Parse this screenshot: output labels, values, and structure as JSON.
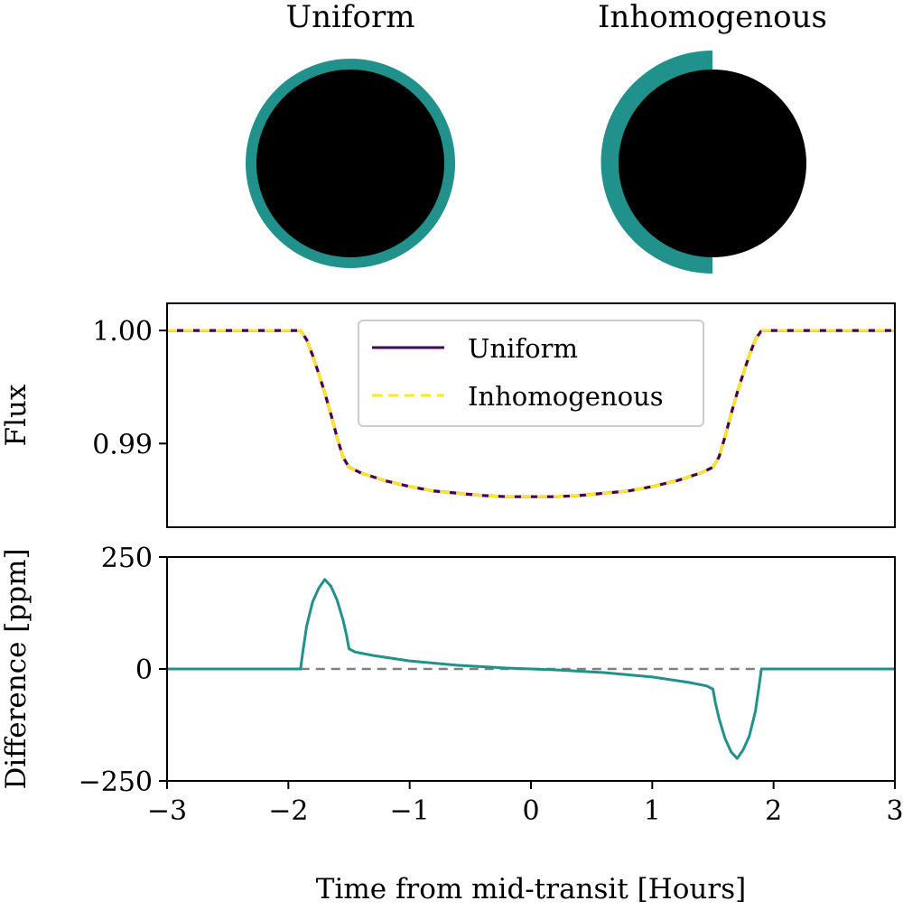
{
  "diagram": {
    "uniform": {
      "title": "Uniform"
    },
    "inhomogenous": {
      "title": "Inhomogenous"
    },
    "atmosphere_color": "#21918c",
    "planet_color": "#000000"
  },
  "chart_data": [
    {
      "type": "line",
      "panel": "flux",
      "ylabel": "Flux",
      "xlim": [
        -3,
        3
      ],
      "ylim": [
        0.9826,
        1.0024
      ],
      "yticks": [
        0.99,
        1.0
      ],
      "ytick_labels": [
        "0.99",
        "1.00"
      ],
      "legend_loc": "upper center",
      "series": [
        {
          "name": "Uniform",
          "style": "solid",
          "color": "#440154",
          "x": [
            -3.0,
            -1.9,
            -1.85,
            -1.8,
            -1.75,
            -1.7,
            -1.65,
            -1.6,
            -1.55,
            -1.5,
            -1.4,
            -1.2,
            -1.0,
            -0.8,
            -0.6,
            -0.4,
            -0.2,
            0.0,
            0.2,
            0.4,
            0.6,
            0.8,
            1.0,
            1.2,
            1.4,
            1.5,
            1.55,
            1.6,
            1.65,
            1.7,
            1.75,
            1.8,
            1.85,
            1.9,
            3.0
          ],
          "y": [
            1.0,
            1.0,
            0.9992,
            0.9978,
            0.9962,
            0.9945,
            0.9926,
            0.9906,
            0.9888,
            0.9879,
            0.9874,
            0.9867,
            0.9862,
            0.9858,
            0.9856,
            0.9854,
            0.9853,
            0.9853,
            0.9853,
            0.9854,
            0.9856,
            0.9858,
            0.9862,
            0.9867,
            0.9874,
            0.9879,
            0.9888,
            0.9906,
            0.9926,
            0.9945,
            0.9962,
            0.9978,
            0.9992,
            1.0,
            1.0
          ]
        },
        {
          "name": "Inhomogenous",
          "style": "dashed",
          "color": "#fde725",
          "x": [
            -3.0,
            -1.9,
            -1.85,
            -1.8,
            -1.75,
            -1.7,
            -1.65,
            -1.6,
            -1.55,
            -1.5,
            -1.4,
            -1.2,
            -1.0,
            -0.8,
            -0.6,
            -0.4,
            -0.2,
            0.0,
            0.2,
            0.4,
            0.6,
            0.8,
            1.0,
            1.2,
            1.4,
            1.5,
            1.55,
            1.6,
            1.65,
            1.7,
            1.75,
            1.8,
            1.85,
            1.9,
            3.0
          ],
          "y": [
            1.0,
            1.0,
            0.9992,
            0.9978,
            0.9962,
            0.9945,
            0.9926,
            0.9906,
            0.9888,
            0.9879,
            0.9874,
            0.9867,
            0.9862,
            0.9858,
            0.9856,
            0.9854,
            0.9853,
            0.9853,
            0.9853,
            0.9854,
            0.9856,
            0.9858,
            0.9862,
            0.9867,
            0.9874,
            0.9879,
            0.9888,
            0.9906,
            0.9926,
            0.9945,
            0.9962,
            0.9978,
            0.9992,
            1.0,
            1.0
          ]
        }
      ]
    },
    {
      "type": "line",
      "panel": "difference",
      "xlabel": "Time from mid-transit [Hours]",
      "ylabel": "Difference [ppm]",
      "xlim": [
        -3,
        3
      ],
      "ylim": [
        -250,
        250
      ],
      "xticks": [
        -3,
        -2,
        -1,
        0,
        1,
        2,
        3
      ],
      "xtick_labels": [
        "−3",
        "−2",
        "−1",
        "0",
        "1",
        "2",
        "3"
      ],
      "yticks": [
        -250,
        0,
        250
      ],
      "ytick_labels": [
        "−250",
        "0",
        "250"
      ],
      "reference_line": {
        "y": 0,
        "x_range": [
          -1.9,
          1.9
        ],
        "style": "dashed",
        "color": "#808080"
      },
      "series": [
        {
          "color": "#21918c",
          "x": [
            -3.0,
            -1.9,
            -1.88,
            -1.85,
            -1.8,
            -1.75,
            -1.7,
            -1.65,
            -1.6,
            -1.55,
            -1.52,
            -1.5,
            -1.45,
            -1.3,
            -1.0,
            -0.6,
            -0.2,
            0.0,
            0.2,
            0.6,
            1.0,
            1.3,
            1.45,
            1.5,
            1.52,
            1.55,
            1.6,
            1.65,
            1.7,
            1.75,
            1.8,
            1.85,
            1.88,
            1.9,
            3.0
          ],
          "y": [
            0,
            0,
            40,
            95,
            150,
            180,
            200,
            185,
            155,
            110,
            75,
            45,
            38,
            30,
            18,
            8,
            2,
            0,
            -2,
            -8,
            -18,
            -30,
            -38,
            -45,
            -75,
            -110,
            -155,
            -185,
            -200,
            -180,
            -150,
            -95,
            -40,
            0,
            0
          ]
        }
      ]
    }
  ]
}
